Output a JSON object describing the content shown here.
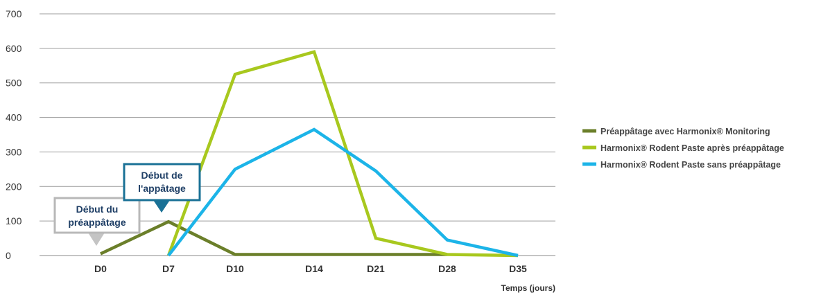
{
  "chart_data": {
    "type": "line",
    "categories": [
      "D0",
      "D7",
      "D10",
      "D14",
      "D21",
      "D28",
      "D35"
    ],
    "xlabel": "Temps (jours)",
    "ylabel": "",
    "title": "",
    "ylim": [
      0,
      700
    ],
    "yticks": [
      0,
      100,
      200,
      300,
      400,
      500,
      600,
      700
    ],
    "grid": true,
    "legend_position": "right",
    "series": [
      {
        "name": "Préappâtage avec Harmonix® Monitoring",
        "color": "#6b7f2a",
        "values": [
          5,
          98,
          3,
          3,
          3,
          3,
          null
        ]
      },
      {
        "name": "Harmonix® Rodent Paste après préappâtage",
        "color": "#a8c81e",
        "values": [
          null,
          0,
          525,
          590,
          50,
          3,
          0
        ]
      },
      {
        "name": "Harmonix® Rodent Paste sans préappâtage",
        "color": "#1cb4e8",
        "values": [
          null,
          0,
          250,
          365,
          245,
          45,
          0
        ]
      }
    ],
    "annotations": [
      {
        "lines": [
          "Début du",
          "préappâtage"
        ],
        "category": "D0",
        "style": "gray",
        "border": "#b8b8b8",
        "pointer": "#c4c4c4",
        "text_color": "#1f3f66"
      },
      {
        "lines": [
          "Début de",
          "l'appâtage"
        ],
        "category": "D7",
        "style": "blue",
        "border": "#1a7196",
        "pointer": "#1a7196",
        "text_color": "#1f3f66"
      }
    ]
  }
}
